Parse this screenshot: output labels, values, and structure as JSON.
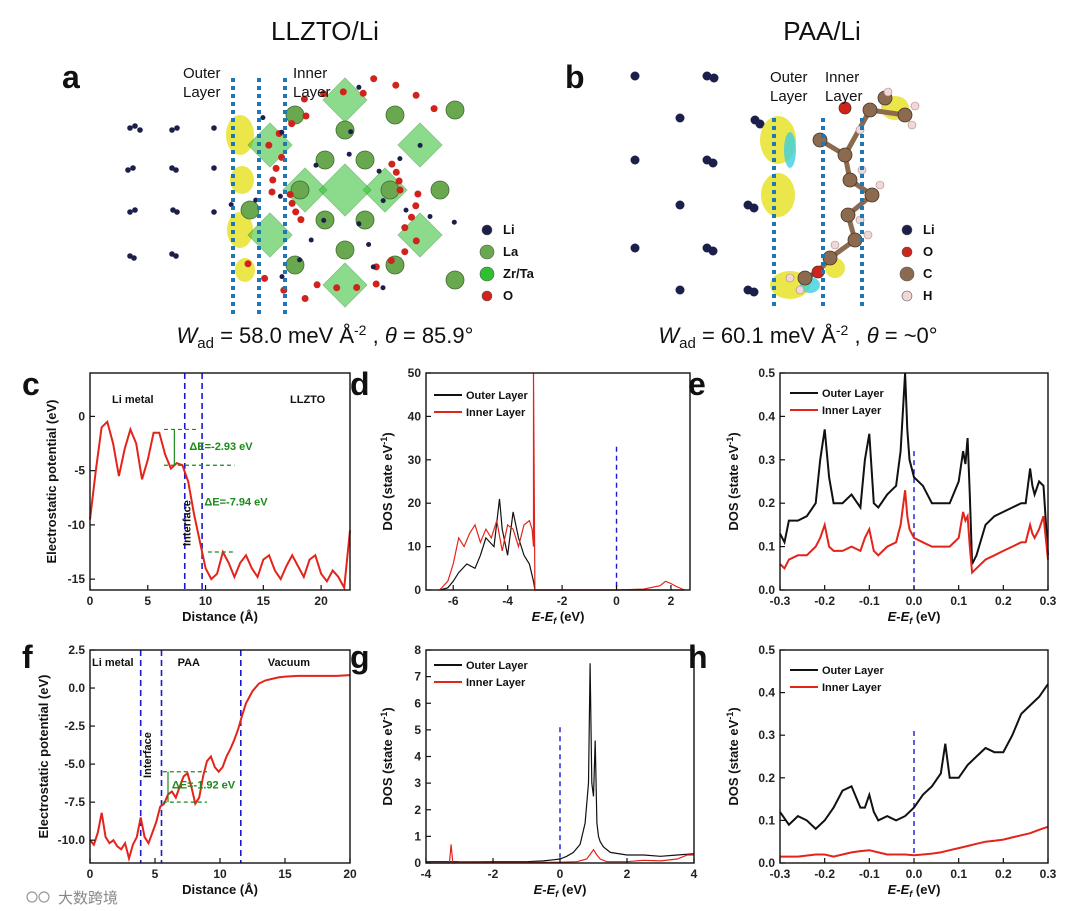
{
  "figure": {
    "titles": {
      "left": "LLZTO/Li",
      "right": "PAA/Li"
    },
    "panel_labels": [
      "a",
      "b",
      "c",
      "d",
      "e",
      "f",
      "g",
      "h"
    ],
    "panel_a": {
      "outer_label": "Outer\nLayer",
      "inner_label": "Inner\nLayer",
      "legend": [
        {
          "name": "Li",
          "color": "#1c1f4a"
        },
        {
          "name": "La",
          "color": "#6aa84f"
        },
        {
          "name": "Zr/Ta",
          "color": "#2fbf2f"
        },
        {
          "name": "O",
          "color": "#d0231b"
        }
      ],
      "equation": "W_ad = 58.0 meV Å^-2 , θ = 85.9°",
      "w": "W",
      "w_sub": "ad",
      "eq_mid": " = 58.0 meV Å",
      "eq_sup": "-2",
      "eq_sep": " , ",
      "theta": "θ",
      "eq_end": " = 85.9°"
    },
    "panel_b": {
      "outer_label": "Outer\nLayer",
      "inner_label": "Inner\nLayer",
      "legend": [
        {
          "name": "Li",
          "color": "#1c1f4a"
        },
        {
          "name": "O",
          "color": "#d0231b"
        },
        {
          "name": "C",
          "color": "#8b6a4f"
        },
        {
          "name": "H",
          "color": "#f2d7d7"
        }
      ],
      "equation": "W_ad = 60.1 meV Å^-2 , θ = ~0°",
      "w": "W",
      "w_sub": "ad",
      "eq_mid": " = 60.1 meV Å",
      "eq_sup": "-2",
      "eq_sep": " , ",
      "theta": "θ",
      "eq_end": " = ~0°"
    },
    "watermark": "大数跨境"
  },
  "chart_data": [
    {
      "id": "c",
      "type": "line",
      "xlabel": "Distance (Å)",
      "ylabel": "Electrostatic potential (eV)",
      "xlim": [
        0,
        22.5
      ],
      "ylim": [
        -16,
        4
      ],
      "xticks": [
        0,
        5,
        10,
        15,
        20
      ],
      "yticks": [
        0,
        -5,
        -10,
        -15
      ],
      "regions": [
        "Li metal",
        "LLZTO"
      ],
      "interface_label": "Interface",
      "dividers": [
        8.2,
        9.7
      ],
      "annotations": [
        "ΔE=-2.93 eV",
        "ΔE=-7.94 eV"
      ],
      "series": [
        {
          "name": "Electrostatic potential",
          "color": "#e3241b",
          "x": [
            0,
            0.5,
            1,
            1.5,
            2,
            2.5,
            3,
            3.5,
            4,
            4.5,
            5,
            5.5,
            6,
            6.5,
            7,
            7.5,
            8,
            8.5,
            9,
            9.5,
            10,
            10.5,
            11,
            11.5,
            12,
            12.5,
            13,
            13.5,
            14,
            14.5,
            15,
            15.5,
            16,
            16.5,
            17,
            17.5,
            18,
            18.5,
            19,
            19.5,
            20,
            20.5,
            21,
            21.5,
            22,
            22.5
          ],
          "y": [
            -9.5,
            -5,
            -1,
            -0.5,
            -2.5,
            -5.5,
            -3,
            -1.2,
            -2.5,
            -5.8,
            -4,
            -1.5,
            -1.5,
            -3.5,
            -4.8,
            -4.3,
            -4.5,
            -6,
            -9,
            -11.5,
            -14,
            -15,
            -14.5,
            -12.5,
            -13.5,
            -14.8,
            -13.5,
            -12.8,
            -14,
            -14.8,
            -13.2,
            -12.8,
            -14.2,
            -15,
            -13.8,
            -12.8,
            -13.8,
            -14.8,
            -13.2,
            -12.8,
            -14.5,
            -15.2,
            -14.2,
            -14.8,
            -15.8,
            -10.5
          ]
        }
      ]
    },
    {
      "id": "d",
      "type": "line",
      "xlabel": "E-E_f (eV)",
      "ylabel": "DOS (state eV^-1)",
      "xlim": [
        -7,
        2.7
      ],
      "ylim": [
        0,
        50
      ],
      "xticks": [
        -6,
        -4,
        -2,
        0,
        2
      ],
      "yticks": [
        0,
        10,
        20,
        30,
        40,
        50
      ],
      "fermi": 0,
      "series": [
        {
          "name": "Outer Layer",
          "color": "#111111",
          "x": [
            -6.5,
            -6.2,
            -6,
            -5.8,
            -5.5,
            -5.2,
            -5,
            -4.8,
            -4.5,
            -4.3,
            -4.2,
            -4,
            -3.8,
            -3.6,
            -3.4,
            -3.2,
            -3.05,
            -3,
            -2.9,
            -2.5,
            -2,
            -1,
            0,
            1,
            1.8,
            2,
            2.3,
            2.5
          ],
          "y": [
            0,
            0.5,
            2,
            4,
            6,
            5,
            8,
            12,
            10,
            21,
            14,
            8,
            18,
            12,
            8,
            6,
            2,
            0,
            0,
            0,
            0,
            0,
            0,
            0,
            0,
            0,
            0,
            0
          ]
        },
        {
          "name": "Inner Layer",
          "color": "#e3241b",
          "x": [
            -6.5,
            -6.2,
            -6,
            -5.8,
            -5.6,
            -5.4,
            -5.2,
            -5,
            -4.8,
            -4.6,
            -4.4,
            -4.2,
            -4,
            -3.8,
            -3.6,
            -3.4,
            -3.2,
            -3.1,
            -3.05,
            -3.05,
            -3.0,
            -2.9,
            -2.5,
            -2,
            -1,
            0,
            1,
            1.6,
            1.8,
            2,
            2.2,
            2.5
          ],
          "y": [
            0,
            2,
            6,
            12,
            10,
            13,
            15,
            11,
            14,
            12,
            16,
            9,
            15,
            14,
            10,
            15,
            16,
            14,
            10,
            50,
            0,
            0,
            0,
            0,
            0,
            0,
            0.2,
            1,
            2,
            1.5,
            0.8,
            0
          ]
        }
      ]
    },
    {
      "id": "e",
      "type": "line",
      "xlabel": "E-E_f (eV)",
      "ylabel": "DOS (state eV^-1)",
      "xlim": [
        -0.3,
        0.3
      ],
      "ylim": [
        0,
        0.5
      ],
      "xticks": [
        -0.3,
        -0.2,
        -0.1,
        0.0,
        0.1,
        0.2,
        0.3
      ],
      "yticks": [
        0.0,
        0.1,
        0.2,
        0.3,
        0.4,
        0.5
      ],
      "fermi": 0,
      "series": [
        {
          "name": "Outer Layer",
          "color": "#111111",
          "x": [
            -0.3,
            -0.29,
            -0.28,
            -0.26,
            -0.24,
            -0.22,
            -0.21,
            -0.2,
            -0.19,
            -0.18,
            -0.16,
            -0.14,
            -0.12,
            -0.11,
            -0.1,
            -0.09,
            -0.08,
            -0.06,
            -0.04,
            -0.03,
            -0.02,
            -0.015,
            -0.01,
            0,
            0.02,
            0.04,
            0.06,
            0.08,
            0.1,
            0.11,
            0.115,
            0.12,
            0.125,
            0.13,
            0.14,
            0.16,
            0.18,
            0.2,
            0.22,
            0.24,
            0.25,
            0.26,
            0.265,
            0.27,
            0.28,
            0.29,
            0.3
          ],
          "y": [
            0.13,
            0.11,
            0.16,
            0.16,
            0.17,
            0.2,
            0.3,
            0.37,
            0.26,
            0.2,
            0.2,
            0.22,
            0.19,
            0.3,
            0.36,
            0.2,
            0.19,
            0.22,
            0.24,
            0.32,
            0.5,
            0.37,
            0.3,
            0.26,
            0.24,
            0.2,
            0.2,
            0.2,
            0.25,
            0.32,
            0.29,
            0.35,
            0.22,
            0.06,
            0.08,
            0.15,
            0.17,
            0.18,
            0.19,
            0.2,
            0.2,
            0.28,
            0.24,
            0.22,
            0.25,
            0.24,
            0.08
          ]
        },
        {
          "name": "Inner Layer",
          "color": "#e3241b",
          "x": [
            -0.3,
            -0.29,
            -0.28,
            -0.26,
            -0.24,
            -0.22,
            -0.21,
            -0.2,
            -0.19,
            -0.18,
            -0.16,
            -0.14,
            -0.12,
            -0.11,
            -0.1,
            -0.09,
            -0.08,
            -0.06,
            -0.04,
            -0.03,
            -0.02,
            -0.015,
            -0.01,
            0,
            0.02,
            0.04,
            0.06,
            0.08,
            0.1,
            0.11,
            0.115,
            0.12,
            0.125,
            0.13,
            0.14,
            0.16,
            0.18,
            0.2,
            0.22,
            0.24,
            0.25,
            0.26,
            0.265,
            0.27,
            0.28,
            0.29,
            0.3
          ],
          "y": [
            0.06,
            0.05,
            0.07,
            0.08,
            0.08,
            0.1,
            0.12,
            0.15,
            0.1,
            0.09,
            0.09,
            0.1,
            0.09,
            0.12,
            0.14,
            0.09,
            0.08,
            0.1,
            0.11,
            0.15,
            0.23,
            0.17,
            0.14,
            0.12,
            0.11,
            0.1,
            0.1,
            0.1,
            0.12,
            0.18,
            0.16,
            0.17,
            0.1,
            0.04,
            0.05,
            0.07,
            0.08,
            0.09,
            0.1,
            0.11,
            0.11,
            0.15,
            0.13,
            0.12,
            0.14,
            0.17,
            0.07
          ]
        }
      ]
    },
    {
      "id": "f",
      "type": "line",
      "xlabel": "Distance (Å)",
      "ylabel": "Electrostatic potential (eV)",
      "xlim": [
        0,
        20
      ],
      "ylim": [
        -11.5,
        2.5
      ],
      "xticks": [
        0,
        5,
        10,
        15,
        20
      ],
      "yticks": [
        2.5,
        0.0,
        -2.5,
        -5.0,
        -7.5,
        -10.0
      ],
      "regions": [
        "Li metal",
        "PAA",
        "Vacuum"
      ],
      "interface_label": "Interface",
      "dividers": [
        3.9,
        5.5,
        11.6
      ],
      "annotations": [
        "ΔE=-1.92 eV"
      ],
      "series": [
        {
          "name": "Electrostatic potential",
          "color": "#e3241b",
          "x": [
            0,
            0.3,
            0.6,
            0.9,
            1.2,
            1.5,
            1.8,
            2.1,
            2.4,
            2.7,
            3,
            3.3,
            3.6,
            3.9,
            4.2,
            4.5,
            4.8,
            5.1,
            5.4,
            5.7,
            6,
            6.3,
            6.6,
            6.9,
            7.2,
            7.5,
            7.8,
            8.1,
            8.4,
            8.7,
            9,
            9.3,
            9.6,
            9.9,
            10.2,
            10.5,
            10.8,
            11.1,
            11.4,
            11.7,
            12,
            12.5,
            13,
            13.5,
            14,
            14.5,
            15,
            16,
            17,
            18,
            19,
            20
          ],
          "y": [
            -10,
            -10.3,
            -9.5,
            -8.2,
            -9.8,
            -10.2,
            -10,
            -10.4,
            -10.6,
            -10.2,
            -11.2,
            -10.3,
            -9.8,
            -8.5,
            -9.8,
            -10.2,
            -9.5,
            -8.8,
            -7.8,
            -7.6,
            -7,
            -6.8,
            -7.2,
            -6.5,
            -5.8,
            -5.6,
            -6.5,
            -7.6,
            -7.2,
            -5.8,
            -4.8,
            -4.5,
            -5.2,
            -5.5,
            -5.2,
            -4.5,
            -4,
            -3.4,
            -2.7,
            -1.8,
            -1,
            -0.2,
            0.3,
            0.5,
            0.6,
            0.7,
            0.75,
            0.8,
            0.8,
            0.8,
            0.8,
            0.85
          ]
        }
      ]
    },
    {
      "id": "g",
      "type": "line",
      "xlabel": "E-E_f (eV)",
      "ylabel": "DOS (state eV^-1)",
      "xlim": [
        -4,
        4
      ],
      "ylim": [
        0,
        8
      ],
      "xticks": [
        -4,
        -2,
        0,
        2,
        4
      ],
      "yticks": [
        0,
        1,
        2,
        3,
        4,
        5,
        6,
        7,
        8
      ],
      "fermi": 0,
      "series": [
        {
          "name": "Outer Layer",
          "color": "#111111",
          "x": [
            -4,
            -3.5,
            -3,
            -2.5,
            -2,
            -1.5,
            -1,
            -0.5,
            -0.2,
            0,
            0.2,
            0.4,
            0.6,
            0.75,
            0.85,
            0.9,
            0.95,
            1.0,
            1.05,
            1.1,
            1.15,
            1.2,
            1.3,
            1.5,
            2,
            2.5,
            3,
            3.5,
            4
          ],
          "y": [
            0.05,
            0.05,
            0.05,
            0.05,
            0.05,
            0.05,
            0.05,
            0.08,
            0.12,
            0.15,
            0.25,
            0.4,
            0.7,
            1.5,
            3,
            7.5,
            3,
            2.5,
            4.6,
            1.5,
            1,
            0.8,
            0.6,
            0.4,
            0.3,
            0.3,
            0.25,
            0.3,
            0.35
          ]
        },
        {
          "name": "Inner Layer",
          "color": "#e3241b",
          "x": [
            -4,
            -3.3,
            -3.25,
            -3.2,
            -3.1,
            -3,
            -2,
            -1,
            0,
            0.5,
            0.8,
            1.0,
            1.1,
            1.2,
            1.4,
            2,
            2.5,
            3,
            3.5,
            3.8,
            4
          ],
          "y": [
            0,
            0,
            0.7,
            0,
            0,
            0.05,
            0.02,
            0.02,
            0.03,
            0.05,
            0.15,
            0.5,
            0.3,
            0.15,
            0.05,
            0.05,
            0.1,
            0.08,
            0.15,
            0.3,
            0.3
          ]
        }
      ]
    },
    {
      "id": "h",
      "type": "line",
      "xlabel": "E-E_f (eV)",
      "ylabel": "DOS (state eV^-1)",
      "xlim": [
        -0.3,
        0.3
      ],
      "ylim": [
        0,
        0.5
      ],
      "xticks": [
        -0.3,
        -0.2,
        -0.1,
        0.0,
        0.1,
        0.2,
        0.3
      ],
      "yticks": [
        0.0,
        0.1,
        0.2,
        0.3,
        0.4,
        0.5
      ],
      "fermi": 0,
      "series": [
        {
          "name": "Outer Layer",
          "color": "#111111",
          "x": [
            -0.3,
            -0.28,
            -0.26,
            -0.24,
            -0.22,
            -0.2,
            -0.18,
            -0.16,
            -0.14,
            -0.12,
            -0.11,
            -0.1,
            -0.09,
            -0.08,
            -0.06,
            -0.04,
            -0.02,
            0,
            0.02,
            0.04,
            0.06,
            0.07,
            0.08,
            0.1,
            0.12,
            0.14,
            0.16,
            0.18,
            0.2,
            0.22,
            0.24,
            0.26,
            0.28,
            0.3
          ],
          "y": [
            0.12,
            0.09,
            0.11,
            0.1,
            0.08,
            0.1,
            0.13,
            0.17,
            0.18,
            0.13,
            0.13,
            0.16,
            0.12,
            0.1,
            0.11,
            0.1,
            0.11,
            0.13,
            0.16,
            0.18,
            0.21,
            0.28,
            0.2,
            0.2,
            0.23,
            0.25,
            0.27,
            0.26,
            0.26,
            0.3,
            0.35,
            0.37,
            0.39,
            0.42
          ]
        },
        {
          "name": "Inner Layer",
          "color": "#e3241b",
          "x": [
            -0.3,
            -0.26,
            -0.22,
            -0.2,
            -0.18,
            -0.16,
            -0.14,
            -0.12,
            -0.1,
            -0.08,
            -0.06,
            -0.04,
            -0.02,
            0,
            0.02,
            0.04,
            0.06,
            0.08,
            0.1,
            0.12,
            0.14,
            0.16,
            0.18,
            0.2,
            0.22,
            0.24,
            0.26,
            0.28,
            0.3
          ],
          "y": [
            0.015,
            0.015,
            0.02,
            0.02,
            0.015,
            0.02,
            0.025,
            0.028,
            0.03,
            0.025,
            0.02,
            0.02,
            0.02,
            0.018,
            0.02,
            0.022,
            0.025,
            0.03,
            0.035,
            0.04,
            0.045,
            0.05,
            0.052,
            0.055,
            0.06,
            0.065,
            0.07,
            0.078,
            0.085
          ]
        }
      ]
    }
  ]
}
